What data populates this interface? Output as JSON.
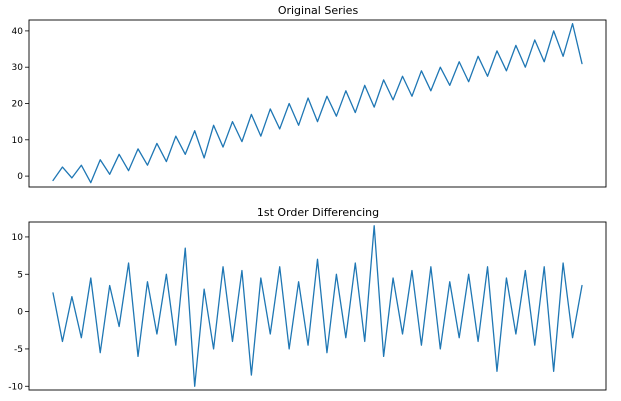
{
  "colors": {
    "series": "#1f77b4",
    "frame": "#000000",
    "background": "#ffffff"
  },
  "chart_data": [
    {
      "type": "line",
      "title": "Original Series",
      "xlabel": "",
      "ylabel": "",
      "xticks": "none",
      "yticks": [
        0,
        10,
        20,
        30,
        40
      ],
      "ylim": [
        -3,
        43
      ],
      "grid": false,
      "series": [
        {
          "x": [
            0,
            10,
            20,
            30,
            40,
            50,
            60,
            70,
            80,
            90,
            100,
            110,
            120,
            130,
            140,
            150,
            160,
            170,
            180,
            190,
            200,
            210,
            220,
            230,
            240,
            250,
            260,
            270,
            280,
            290,
            300,
            310,
            320,
            330,
            340,
            350,
            360,
            370,
            380,
            390,
            400,
            410,
            420,
            430,
            440,
            450,
            460,
            470,
            480,
            490,
            500,
            510,
            520,
            530,
            540,
            550,
            560
          ],
          "values": [
            -1.2,
            2.5,
            -0.5,
            3.0,
            -1.8,
            4.5,
            0.5,
            6.0,
            1.5,
            7.5,
            3.0,
            9.0,
            4.0,
            11.0,
            6.0,
            12.5,
            5.0,
            14.0,
            8.0,
            15.0,
            9.5,
            17.0,
            11.0,
            18.5,
            13.0,
            20.0,
            14.0,
            21.5,
            15.0,
            22.0,
            16.5,
            23.5,
            17.5,
            25.0,
            19.0,
            26.5,
            21.0,
            27.5,
            22.0,
            29.0,
            23.5,
            30.0,
            25.0,
            31.5,
            26.0,
            33.0,
            27.5,
            34.5,
            29.0,
            36.0,
            30.0,
            37.5,
            31.5,
            40.0,
            33.0,
            42.0,
            31.0
          ]
        }
      ]
    },
    {
      "type": "line",
      "title": "1st Order Differencing",
      "xlabel": "",
      "ylabel": "",
      "xticks": "none",
      "yticks": [
        -10,
        -5,
        0,
        5,
        10
      ],
      "ylim": [
        -10.5,
        12
      ],
      "grid": false,
      "series": [
        {
          "x": [
            0,
            10,
            20,
            30,
            40,
            50,
            60,
            70,
            80,
            90,
            100,
            110,
            120,
            130,
            140,
            150,
            160,
            170,
            180,
            190,
            200,
            210,
            220,
            230,
            240,
            250,
            260,
            270,
            280,
            290,
            300,
            310,
            320,
            330,
            340,
            350,
            360,
            370,
            380,
            390,
            400,
            410,
            420,
            430,
            440,
            450,
            460,
            470,
            480,
            490,
            500,
            510,
            520,
            530,
            540,
            550,
            560
          ],
          "values": [
            2.5,
            -4.0,
            2.0,
            -3.5,
            4.5,
            -5.5,
            3.5,
            -2.0,
            6.5,
            -6.0,
            4.0,
            -3.0,
            5.0,
            -4.5,
            8.5,
            -10.0,
            3.0,
            -5.0,
            6.0,
            -4.0,
            5.5,
            -8.5,
            4.5,
            -3.0,
            6.0,
            -5.0,
            4.0,
            -4.5,
            7.0,
            -5.5,
            5.0,
            -3.5,
            6.5,
            -4.0,
            11.5,
            -6.0,
            4.5,
            -3.0,
            5.5,
            -4.5,
            6.0,
            -5.0,
            4.0,
            -3.5,
            5.0,
            -4.0,
            6.0,
            -8.0,
            4.5,
            -3.0,
            5.5,
            -4.5,
            6.0,
            -8.0,
            6.5,
            -3.5,
            3.5
          ]
        }
      ]
    }
  ]
}
